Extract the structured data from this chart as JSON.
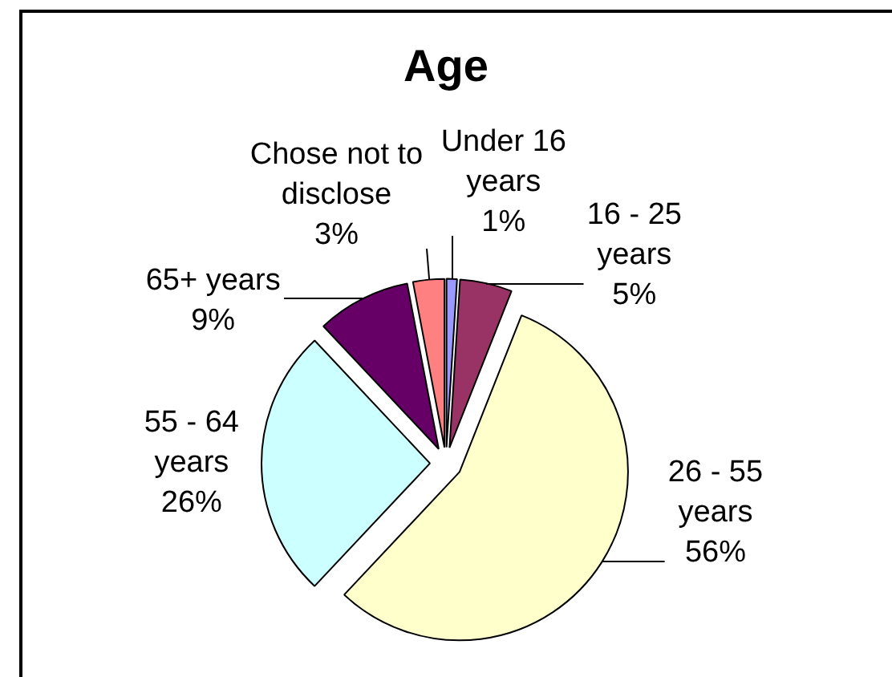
{
  "chart_data": {
    "type": "pie",
    "title": "Age",
    "categories": [
      "Under 16 years",
      "16 - 25 years",
      "26 - 55 years",
      "55 - 64 years",
      "65+ years",
      "Chose not to disclose"
    ],
    "values": [
      1,
      5,
      56,
      26,
      9,
      3
    ],
    "value_labels": [
      "1%",
      "5%",
      "56%",
      "26%",
      "9%",
      "3%"
    ],
    "colors": [
      "#9999ff",
      "#993366",
      "#ffffcc",
      "#ccffff",
      "#660066",
      "#ff8080"
    ],
    "legend": false
  }
}
